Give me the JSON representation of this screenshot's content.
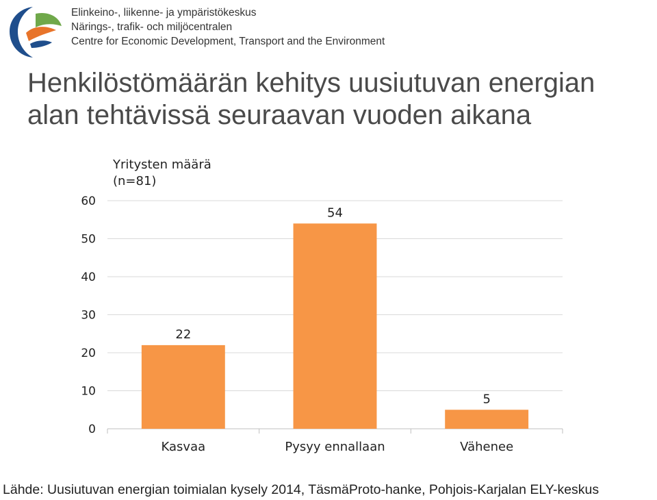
{
  "header": {
    "org_lines": [
      "Elinkeino-, liikenne- ja ympäristökeskus",
      "Närings-, trafik- och miljöcentralen",
      "Centre for Economic Development, Transport and the Environment"
    ]
  },
  "colors": {
    "bar": "#F79646",
    "grid": "#D9D9D9",
    "logo_blue": "#1F4E8C",
    "logo_orange": "#E8742A",
    "logo_green": "#6FA84A"
  },
  "chart_data": {
    "type": "bar",
    "title": "Henkilöstömäärän kehitys uusiutuvan energian alan tehtävissä seuraavan vuoden aikana",
    "subtitle_lines": [
      "Yritysten määrä",
      "(n=81)"
    ],
    "categories": [
      "Kasvaa",
      "Pysyy ennallaan",
      "Vähenee"
    ],
    "values": [
      22,
      54,
      5
    ],
    "data_labels": [
      "22",
      "54",
      "5"
    ],
    "ylim": [
      0,
      60
    ],
    "yticks": [
      "0",
      "10",
      "20",
      "30",
      "40",
      "50",
      "60"
    ],
    "grid": true,
    "legend": "none"
  },
  "source": "Lähde: Uusiutuvan energian toimialan kysely 2014, TäsmäProto-hanke, Pohjois-Karjalan ELY-keskus"
}
